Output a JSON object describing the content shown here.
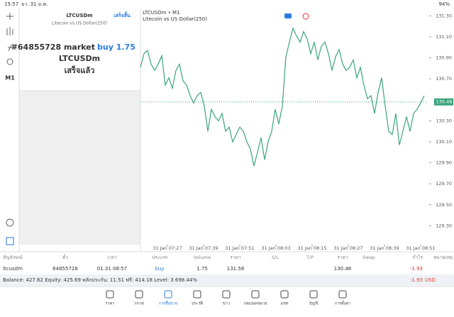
{
  "status_bar": {
    "time": "15:57",
    "date": "อา. 31 ม.ค.",
    "battery": "94%"
  },
  "sidebar": {
    "timeframe": "M1"
  },
  "panel": {
    "symbol": "LTCUSDm",
    "done": "เสร็จสิ้น",
    "description": "Litecoin vs US Dollar(250)",
    "message_order": "#64855728 market",
    "message_action": "buy 1.75",
    "message_symbol": "LTCUSDm",
    "message_status": "เสร็จแล้ว"
  },
  "chart_data": {
    "type": "line",
    "title": "LTCUSDm • M1",
    "subtitle": "Litecoin vs US Dollar(250)",
    "color": "#3aa57a",
    "values": [
      130.81,
      130.94,
      130.97,
      130.84,
      130.78,
      130.84,
      130.92,
      130.64,
      130.71,
      130.61,
      130.78,
      130.84,
      130.68,
      130.64,
      130.54,
      130.47,
      130.54,
      130.57,
      130.44,
      130.2,
      130.41,
      130.34,
      130.3,
      130.37,
      130.2,
      130.24,
      130.1,
      130.17,
      130.24,
      130.2,
      130.1,
      130.03,
      129.87,
      130.0,
      130.14,
      129.93,
      130.1,
      130.2,
      130.41,
      130.27,
      130.44,
      130.91,
      131.05,
      131.18,
      131.11,
      131.05,
      131.15,
      131.08,
      130.94,
      131.05,
      130.88,
      131.01,
      131.05,
      130.94,
      130.78,
      130.91,
      130.98,
      130.84,
      130.78,
      130.81,
      130.88,
      130.71,
      130.81,
      130.64,
      130.51,
      130.54,
      130.37,
      130.57,
      130.71,
      130.44,
      130.2,
      130.17,
      130.37,
      130.07,
      130.2,
      130.34,
      130.2,
      130.37,
      130.41,
      130.47,
      130.54
    ],
    "xlim": [
      0,
      81
    ],
    "xticks": [
      {
        "value": 7.6,
        "label": "31 Jan 07:27"
      },
      {
        "value": 17.8,
        "label": "31 Jan 07:39"
      },
      {
        "value": 28,
        "label": "31 Jan 07:51"
      },
      {
        "value": 38.2,
        "label": "31 Jan 08:03"
      },
      {
        "value": 48.4,
        "label": "31 Jan 08:15"
      },
      {
        "value": 58.6,
        "label": "31 Jan 08:27"
      },
      {
        "value": 68.8,
        "label": "31 Jan 08:39"
      },
      {
        "value": 79,
        "label": "31 Jan 08:51"
      }
    ],
    "ylim": [
      129.12,
      131.37
    ],
    "yticks": [
      {
        "value": 131.3,
        "label": "131.30"
      },
      {
        "value": 131.1,
        "label": "131.10"
      },
      {
        "value": 130.9,
        "label": "130.90"
      },
      {
        "value": 130.7,
        "label": "130.70"
      },
      {
        "value": 130.3,
        "label": "130.30"
      },
      {
        "value": 130.1,
        "label": "130.10"
      },
      {
        "value": 129.9,
        "label": "129.90"
      },
      {
        "value": 129.7,
        "label": "129.70"
      },
      {
        "value": 129.5,
        "label": "129.50"
      },
      {
        "value": 129.3,
        "label": "129.30"
      }
    ],
    "current_price": 130.48,
    "grid": false
  },
  "table": {
    "columns": [
      "สัญลักษณ์",
      "ตั๋ว",
      "เวลา",
      "ประเภท",
      "Volume",
      "ราคา",
      "S/L",
      "T/P",
      "ราคา",
      "Swap",
      "กำไร",
      "หมายเหตุ"
    ],
    "rows": [
      [
        "ltcusdm",
        "64855728",
        "01.31 08:57",
        "buy",
        "1.75",
        "131.58",
        null,
        null,
        "130.48",
        null,
        "-1.93",
        null
      ]
    ]
  },
  "balance": {
    "summary": "Balance: 427.62 Equity: 425.69 หลักประกัน: 11.51 ฟรี: 414.18 Level: 3 698.44%",
    "profit": "-1.93",
    "currency": "USD"
  },
  "tabs": [
    "ราคา",
    "กราฟ",
    "การซื้อขาย",
    "ประวัติ",
    "ข่าว",
    "กล่องจดหมาย",
    "แชท",
    "บัญชี",
    "การตั้งค่า"
  ]
}
